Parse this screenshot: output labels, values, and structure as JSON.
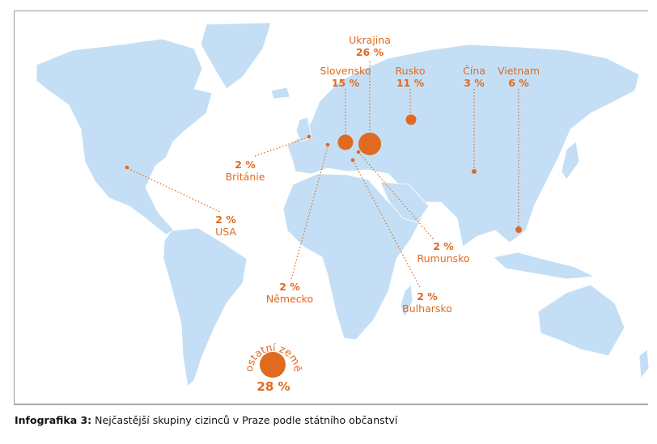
{
  "colors": {
    "land": "#c4dff5",
    "marker": "#e06a1f",
    "border": "#ffffff"
  },
  "markers": [
    {
      "country": "Ukrajina",
      "value": "26 %"
    },
    {
      "country": "Slovensko",
      "value": "15 %"
    },
    {
      "country": "Rusko",
      "value": "11 %"
    },
    {
      "country": "Čína",
      "value": "3 %"
    },
    {
      "country": "Vietnam",
      "value": "6 %"
    },
    {
      "country": "Británie",
      "value": "2 %"
    },
    {
      "country": "USA",
      "value": "2 %"
    },
    {
      "country": "Německo",
      "value": "2 %"
    },
    {
      "country": "Rumunsko",
      "value": "2 %"
    },
    {
      "country": "Bulharsko",
      "value": "2 %"
    }
  ],
  "other": {
    "label": "ostatní země",
    "value": "28 %"
  },
  "caption": {
    "prefix": "Infografika 3:",
    "text": " Nejčastější skupiny cizinců v Praze podle státního občanství"
  }
}
